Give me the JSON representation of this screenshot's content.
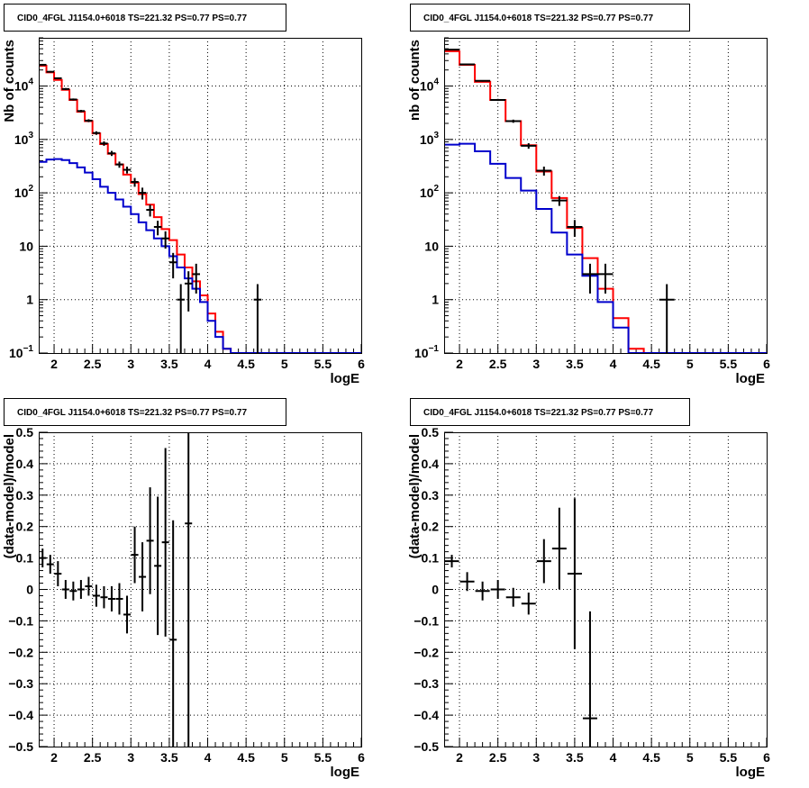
{
  "chart_data": [
    {
      "type": "line",
      "title": "CID0_4FGL J1154.0+6018 TS=221.32 PS=0.77 PS=0.77",
      "xlabel": "logE",
      "ylabel": "Nb of counts",
      "xlim": [
        1.8,
        6.0
      ],
      "ylim": [
        0.1,
        80000
      ],
      "yscale": "log",
      "grid": true,
      "xticks": [
        "2",
        "2.5",
        "3",
        "3.5",
        "4",
        "4.5",
        "5",
        "5.5",
        "6"
      ],
      "yticks": [
        "10^-1",
        "1",
        "10",
        "10^2",
        "10^3",
        "10^4"
      ],
      "bin_edges": [
        1.8,
        1.9,
        2.0,
        2.1,
        2.2,
        2.3,
        2.4,
        2.5,
        2.6,
        2.7,
        2.8,
        2.9,
        3.0,
        3.1,
        3.2,
        3.3,
        3.4,
        3.5,
        3.6,
        3.7,
        3.8,
        3.9,
        4.0,
        4.1,
        4.2,
        4.3,
        4.4,
        4.5,
        4.6,
        4.7,
        4.8,
        4.9,
        5.0,
        5.1,
        5.2,
        5.3,
        5.4,
        5.5,
        5.6,
        5.7,
        5.8,
        5.9,
        6.0
      ],
      "series": [
        {
          "color": "#ff0000",
          "values": [
            24000,
            18000,
            13000,
            8500,
            5500,
            3300,
            2200,
            1300,
            820,
            540,
            340,
            220,
            155,
            95,
            60,
            35,
            21,
            13,
            7,
            4,
            2.2,
            1.2,
            0.55,
            0.25,
            0.12,
            0.1,
            0.1,
            0.1,
            0.1,
            0.1,
            0.1,
            0.1,
            0.1,
            0.1,
            0.1,
            0.1,
            0.1,
            0.1,
            0.1,
            0.1,
            0.1,
            0.1
          ]
        },
        {
          "color": "#0000cc",
          "values": [
            380,
            420,
            430,
            410,
            360,
            300,
            240,
            180,
            130,
            100,
            75,
            55,
            40,
            28,
            20,
            14,
            10,
            6.5,
            4,
            2.5,
            1.6,
            0.9,
            0.4,
            0.2,
            0.12,
            0.1,
            0.1,
            0.1,
            0.1,
            0.1,
            0.1,
            0.1,
            0.1,
            0.1,
            0.1,
            0.1,
            0.1,
            0.1,
            0.1,
            0.1,
            0.1,
            0.1
          ]
        }
      ],
      "points": [
        {
          "x": 1.85,
          "y": 25000,
          "err": 700
        },
        {
          "x": 1.95,
          "y": 18500,
          "err": 600
        },
        {
          "x": 2.05,
          "y": 14000,
          "err": 500
        },
        {
          "x": 2.15,
          "y": 8800,
          "err": 350
        },
        {
          "x": 2.25,
          "y": 5600,
          "err": 250
        },
        {
          "x": 2.35,
          "y": 3400,
          "err": 180
        },
        {
          "x": 2.45,
          "y": 2250,
          "err": 140
        },
        {
          "x": 2.55,
          "y": 1320,
          "err": 100
        },
        {
          "x": 2.65,
          "y": 840,
          "err": 80
        },
        {
          "x": 2.75,
          "y": 550,
          "err": 60
        },
        {
          "x": 2.85,
          "y": 340,
          "err": 45
        },
        {
          "x": 2.95,
          "y": 270,
          "err": 40
        },
        {
          "x": 3.05,
          "y": 160,
          "err": 30
        },
        {
          "x": 3.15,
          "y": 100,
          "err": 25
        },
        {
          "x": 3.25,
          "y": 48,
          "err": 12
        },
        {
          "x": 3.35,
          "y": 23,
          "err": 7
        },
        {
          "x": 3.45,
          "y": 14,
          "err": 5
        },
        {
          "x": 3.55,
          "y": 5,
          "err": 2.5
        },
        {
          "x": 3.65,
          "y": 1,
          "err": 0.95
        },
        {
          "x": 3.75,
          "y": 2,
          "err": 1.4
        },
        {
          "x": 3.85,
          "y": 3,
          "err": 1.7
        },
        {
          "x": 4.65,
          "y": 1,
          "err": 0.95
        }
      ]
    },
    {
      "type": "line",
      "title": "CID0_4FGL J1154.0+6018 TS=221.32 PS=0.77 PS=0.77",
      "xlabel": "logE",
      "ylabel": "nb of counts",
      "xlim": [
        1.8,
        6.0
      ],
      "ylim": [
        0.1,
        80000
      ],
      "yscale": "log",
      "grid": true,
      "xticks": [
        "2",
        "2.5",
        "3",
        "3.5",
        "4",
        "4.5",
        "5",
        "5.5",
        "6"
      ],
      "yticks": [
        "10^-1",
        "1",
        "10",
        "10^2",
        "10^3",
        "10^4"
      ],
      "bin_edges": [
        1.8,
        2.0,
        2.2,
        2.4,
        2.6,
        2.8,
        3.0,
        3.2,
        3.4,
        3.6,
        3.8,
        4.0,
        4.2,
        4.4,
        4.6,
        4.8,
        5.0,
        5.2,
        5.4,
        5.6,
        5.8,
        6.0
      ],
      "series": [
        {
          "color": "#ff0000",
          "values": [
            45000,
            25000,
            12000,
            5500,
            2200,
            780,
            250,
            80,
            22,
            6,
            1.6,
            0.45,
            0.12,
            0.1,
            0.1,
            0.1,
            0.1,
            0.1,
            0.1,
            0.1,
            0.1
          ]
        },
        {
          "color": "#0000cc",
          "values": [
            800,
            830,
            600,
            350,
            190,
            110,
            50,
            18,
            7,
            2.8,
            0.9,
            0.3,
            0.1,
            0.1,
            0.1,
            0.1,
            0.1,
            0.1,
            0.1,
            0.1,
            0.1
          ]
        }
      ],
      "points": [
        {
          "x": 1.9,
          "y": 48000,
          "err": 800
        },
        {
          "x": 2.1,
          "y": 25500,
          "err": 600
        },
        {
          "x": 2.3,
          "y": 12500,
          "err": 400
        },
        {
          "x": 2.5,
          "y": 5500,
          "err": 250
        },
        {
          "x": 2.7,
          "y": 2200,
          "err": 150
        },
        {
          "x": 2.9,
          "y": 760,
          "err": 90
        },
        {
          "x": 3.1,
          "y": 260,
          "err": 50
        },
        {
          "x": 3.3,
          "y": 72,
          "err": 15
        },
        {
          "x": 3.5,
          "y": 23,
          "err": 8
        },
        {
          "x": 3.7,
          "y": 3,
          "err": 1.7
        },
        {
          "x": 3.9,
          "y": 3,
          "err": 1.7
        },
        {
          "x": 4.7,
          "y": 1,
          "err": 0.95
        }
      ]
    },
    {
      "type": "scatter",
      "title": "CID0_4FGL J1154.0+6018 TS=221.32 PS=0.77 PS=0.77",
      "xlabel": "logE",
      "ylabel": "(data-model)/model",
      "xlim": [
        1.8,
        6.0
      ],
      "ylim": [
        -0.5,
        0.5
      ],
      "grid": true,
      "xticks": [
        "2",
        "2.5",
        "3",
        "3.5",
        "4",
        "4.5",
        "5",
        "5.5",
        "6"
      ],
      "yticks": [
        "-0.5",
        "-0.4",
        "-0.3",
        "-0.2",
        "-0.1",
        "0",
        "0.1",
        "0.2",
        "0.3",
        "0.4",
        "0.5"
      ],
      "points": [
        {
          "x": 1.85,
          "y": 0.1,
          "err": 0.03
        },
        {
          "x": 1.95,
          "y": 0.08,
          "err": 0.03
        },
        {
          "x": 2.05,
          "y": 0.05,
          "err": 0.04
        },
        {
          "x": 2.15,
          "y": 0.0,
          "err": 0.03
        },
        {
          "x": 2.25,
          "y": -0.005,
          "err": 0.03
        },
        {
          "x": 2.35,
          "y": 0.0,
          "err": 0.03
        },
        {
          "x": 2.45,
          "y": 0.01,
          "err": 0.03
        },
        {
          "x": 2.55,
          "y": -0.02,
          "err": 0.035
        },
        {
          "x": 2.65,
          "y": -0.025,
          "err": 0.035
        },
        {
          "x": 2.75,
          "y": -0.03,
          "err": 0.04
        },
        {
          "x": 2.85,
          "y": -0.03,
          "err": 0.05
        },
        {
          "x": 2.95,
          "y": -0.08,
          "err": 0.06
        },
        {
          "x": 3.05,
          "y": 0.11,
          "err": 0.09
        },
        {
          "x": 3.15,
          "y": 0.04,
          "err": 0.11
        },
        {
          "x": 3.25,
          "y": 0.155,
          "err": 0.17
        },
        {
          "x": 3.35,
          "y": 0.075,
          "err": 0.22
        },
        {
          "x": 3.45,
          "y": 0.15,
          "err": 0.3
        },
        {
          "x": 3.55,
          "y": -0.16,
          "err": 0.38
        },
        {
          "x": 3.75,
          "y": 0.21,
          "err": 0.8
        }
      ]
    },
    {
      "type": "scatter",
      "title": "CID0_4FGL J1154.0+6018 TS=221.32 PS=0.77 PS=0.77",
      "xlabel": "logE",
      "ylabel": "(data-model)/model",
      "xlim": [
        1.8,
        6.0
      ],
      "ylim": [
        -0.5,
        0.5
      ],
      "grid": true,
      "xticks": [
        "2",
        "2.5",
        "3",
        "3.5",
        "4",
        "4.5",
        "5",
        "5.5",
        "6"
      ],
      "yticks": [
        "-0.5",
        "-0.4",
        "-0.3",
        "-0.2",
        "-0.1",
        "0",
        "0.1",
        "0.2",
        "0.3",
        "0.4",
        "0.5"
      ],
      "points": [
        {
          "x": 1.9,
          "y": 0.09,
          "err": 0.02
        },
        {
          "x": 2.1,
          "y": 0.025,
          "err": 0.03
        },
        {
          "x": 2.3,
          "y": -0.005,
          "err": 0.03
        },
        {
          "x": 2.5,
          "y": 0.0,
          "err": 0.03
        },
        {
          "x": 2.7,
          "y": -0.025,
          "err": 0.03
        },
        {
          "x": 2.9,
          "y": -0.045,
          "err": 0.035
        },
        {
          "x": 3.1,
          "y": 0.09,
          "err": 0.07
        },
        {
          "x": 3.3,
          "y": 0.13,
          "err": 0.13
        },
        {
          "x": 3.5,
          "y": 0.05,
          "err": 0.24
        },
        {
          "x": 3.7,
          "y": -0.41,
          "err": 0.34
        }
      ]
    }
  ]
}
